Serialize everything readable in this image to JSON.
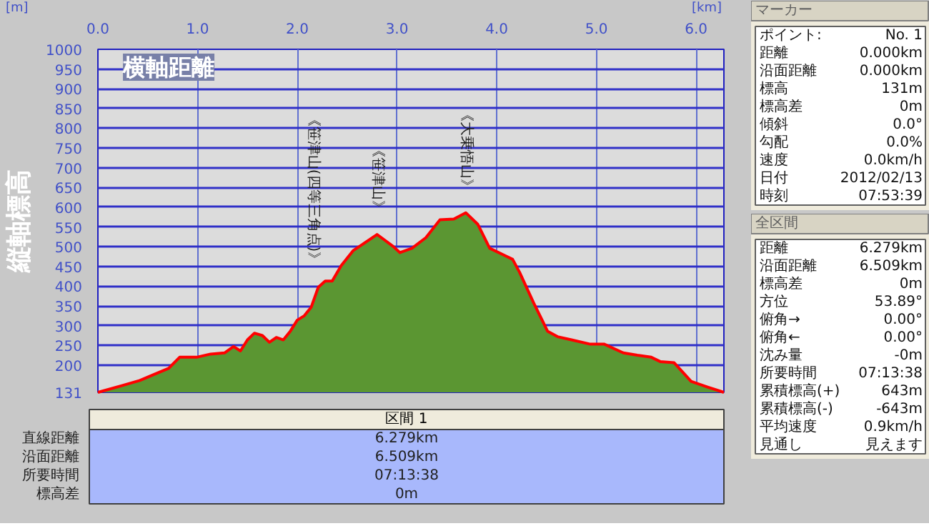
{
  "chart_data": [
    {
      "type": "area",
      "xlabel": "横軸距離",
      "ylabel": "縦軸標高",
      "annotations": [
        {
          "text": "《笹津山(四等三角点)》",
          "x": 2.16,
          "y": 400
        },
        {
          "text": "《笹津山》",
          "x": 2.8,
          "y": 531
        },
        {
          "text": "《大乗悟山》",
          "x": 3.69,
          "y": 586
        },
        "[m]",
        "[km]"
      ],
      "x": [
        0,
        0.24,
        0.42,
        0.56,
        0.71,
        0.82,
        0.99,
        1.13,
        1.27,
        1.36,
        1.43,
        1.5,
        1.57,
        1.65,
        1.72,
        1.79,
        1.86,
        1.93,
        2.0,
        2.07,
        2.14,
        2.21,
        2.28,
        2.35,
        2.44,
        2.56,
        2.66,
        2.8,
        2.87,
        2.96,
        3.03,
        3.15,
        3.29,
        3.43,
        3.57,
        3.69,
        3.81,
        3.93,
        4.07,
        4.16,
        4.23,
        4.37,
        4.51,
        4.61,
        4.75,
        4.94,
        5.08,
        5.27,
        5.41,
        5.55,
        5.64,
        5.78,
        5.95,
        6.11,
        6.279
      ],
      "series": [
        {
          "type": "area",
          "color": "#5b9632",
          "values": [
            131,
            148,
            161,
            176,
            192,
            220,
            220,
            228,
            231,
            247,
            236,
            264,
            281,
            275,
            258,
            270,
            264,
            286,
            314,
            325,
            347,
            397,
            413,
            413,
            452,
            490,
            507,
            531,
            518,
            501,
            485,
            496,
            523,
            568,
            570,
            586,
            557,
            496,
            479,
            468,
            435,
            358,
            286,
            272,
            264,
            253,
            253,
            231,
            225,
            220,
            209,
            206,
            159,
            145,
            131
          ]
        }
      ],
      "xlim": [
        0,
        6.279
      ],
      "ylim": [
        131,
        1000
      ],
      "xticks": [
        {
          "value": 0,
          "label": "0.0"
        },
        {
          "value": 1,
          "label": "1.0"
        },
        {
          "value": 2,
          "label": "2.0"
        },
        {
          "value": 3,
          "label": "3.0"
        },
        {
          "value": 4,
          "label": "4.0"
        },
        {
          "value": 5,
          "label": "5.0"
        },
        {
          "value": 6,
          "label": "6.0"
        }
      ],
      "yticks": [
        131,
        200,
        250,
        300,
        350,
        400,
        450,
        500,
        550,
        600,
        650,
        700,
        750,
        800,
        850,
        900,
        950,
        1000
      ],
      "grid": true
    },
    {
      "type": "other",
      "title": "区間 1",
      "annotations": [
        "直線距離",
        "6.279km",
        "沿面距離",
        "6.509km",
        "所要時間",
        "07:13:38",
        "標高差",
        "0m"
      ]
    },
    {
      "type": "other",
      "title": "マーカー",
      "annotations": [
        "ポイント:",
        "No. 1",
        "距離",
        "0.000km",
        "沿面距離",
        "0.000km",
        "標高",
        "131m",
        "標高差",
        "0m",
        "傾斜",
        "0.0°",
        "勾配",
        "0.0%",
        "速度",
        "0.0km/h",
        "日付",
        "2012/02/13",
        "時刻",
        "07:53:39"
      ]
    },
    {
      "type": "other",
      "title": "全区間",
      "annotations": [
        "距離",
        "6.279km",
        "沿面距離",
        "6.509km",
        "標高差",
        "0m",
        "方位",
        "53.89°",
        "俯角→",
        "0.00°",
        "俯角←",
        "0.00°",
        "沈み量",
        "-0m",
        "所要時間",
        "07:13:38",
        "累積標高(+)",
        "643m",
        "累積標高(-)",
        "-643m",
        "平均速度",
        "0.9km/h",
        "見通し",
        "見えます"
      ]
    }
  ]
}
